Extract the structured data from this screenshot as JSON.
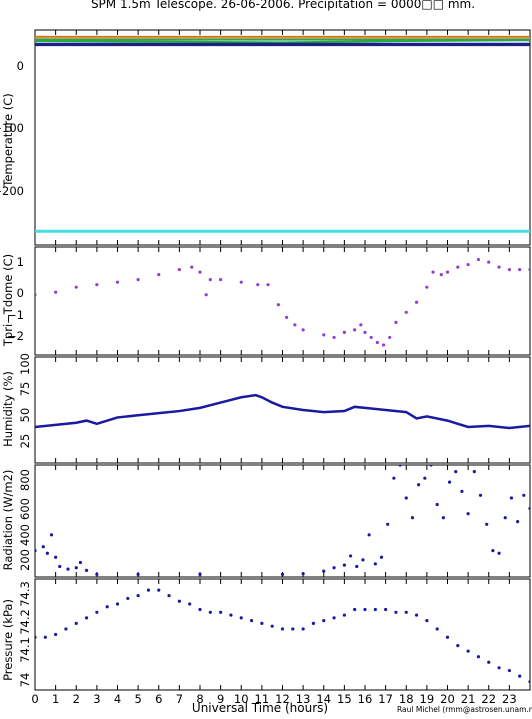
{
  "title": "SPM 1.5m Telescope. 26-06-2006. Precipitation = 0000□□ mm.",
  "xlabel": "Universal Time (hours)",
  "credit": "Raul Michel (rmm@astrosen.unam.mx)",
  "x_ticks": [
    "0",
    "1",
    "2",
    "3",
    "4",
    "5",
    "6",
    "7",
    "8",
    "9",
    "10",
    "11",
    "12",
    "13",
    "14",
    "15",
    "16",
    "17",
    "18",
    "19",
    "20",
    "21",
    "22",
    "23"
  ],
  "panels": [
    {
      "ylabel": "Temperature (C)",
      "ticks": [
        "0",
        "−100",
        "−200"
      ]
    },
    {
      "ylabel": "Tpri−Tdome (C)",
      "ticks": [
        "1",
        "0",
        "−1",
        "−2"
      ]
    },
    {
      "ylabel": "Humidity (%)",
      "ticks": [
        "25",
        "50",
        "75",
        "100"
      ]
    },
    {
      "ylabel": "Radiation (W/m2)",
      "ticks": [
        "200",
        "400",
        "600",
        "800"
      ]
    },
    {
      "ylabel": "Pressure (kPa)",
      "ticks": [
        "74",
        "74.1",
        "74.2",
        "74.3"
      ]
    }
  ],
  "chart_data": [
    {
      "type": "line",
      "ylabel": "Temperature (C)",
      "xlim": [
        0,
        24
      ],
      "ylim": [
        -285,
        28
      ],
      "series": [
        {
          "color": "#e03020",
          "x": [
            0,
            24
          ],
          "y": [
            18,
            18
          ]
        },
        {
          "color": "#d4a020",
          "x": [
            0,
            24
          ],
          "y": [
            17,
            17
          ]
        },
        {
          "color": "#20b020",
          "x": [
            0,
            6,
            12,
            18,
            24
          ],
          "y": [
            12,
            11,
            10,
            12,
            13
          ]
        },
        {
          "color": "#30a070",
          "x": [
            0,
            24
          ],
          "y": [
            14,
            14
          ]
        },
        {
          "color": "#1a1aa0",
          "x": [
            0,
            24
          ],
          "y": [
            8,
            8
          ]
        },
        {
          "color": "#202080",
          "x": [
            0,
            24
          ],
          "y": [
            6,
            6
          ]
        },
        {
          "color": "#40e0e0",
          "x": [
            0,
            24
          ],
          "y": [
            -265,
            -265
          ]
        }
      ]
    },
    {
      "type": "scatter",
      "ylabel": "Tpri−Tdome (C)",
      "xlim": [
        0,
        24
      ],
      "ylim": [
        -2.7,
        1.6
      ],
      "color": "#9040d0",
      "x": [
        0,
        1,
        2,
        3,
        4,
        5,
        6,
        7,
        7.6,
        8,
        8.3,
        8.5,
        9,
        10,
        10.8,
        11.3,
        11.8,
        12.2,
        12.6,
        13,
        14,
        14.5,
        15,
        15.5,
        15.8,
        16,
        16.3,
        16.6,
        16.9,
        17.2,
        17.5,
        18,
        18.5,
        19,
        19.3,
        19.7,
        20,
        20.5,
        21,
        21.5,
        22,
        22.5,
        23,
        23.5,
        24
      ],
      "y": [
        -0.3,
        -0.2,
        0,
        0.1,
        0.2,
        0.3,
        0.5,
        0.7,
        0.8,
        0.6,
        -0.3,
        0.3,
        0.3,
        0.2,
        0.1,
        0.1,
        -0.7,
        -1.2,
        -1.5,
        -1.7,
        -1.9,
        -2.0,
        -1.8,
        -1.7,
        -1.5,
        -1.8,
        -2.0,
        -2.2,
        -2.3,
        -2.0,
        -1.4,
        -1.0,
        -0.6,
        0,
        0.6,
        0.5,
        0.6,
        0.8,
        0.9,
        1.1,
        1.0,
        0.8,
        0.7,
        0.7,
        0.7
      ]
    },
    {
      "type": "line",
      "ylabel": "Humidity (%)",
      "xlim": [
        0,
        24
      ],
      "ylim": [
        0,
        100
      ],
      "color": "#1a1aa0",
      "x": [
        0,
        1,
        2,
        2.5,
        3,
        4,
        5,
        6,
        7,
        8,
        9,
        10,
        10.7,
        11,
        11.5,
        12,
        13,
        14,
        15,
        15.5,
        16,
        17,
        18,
        18.5,
        19,
        20,
        20.5,
        21,
        22,
        23,
        24
      ],
      "y": [
        34,
        36,
        38,
        40,
        37,
        43,
        45,
        47,
        49,
        52,
        57,
        62,
        64,
        62,
        57,
        53,
        50,
        48,
        49,
        53,
        52,
        50,
        48,
        42,
        44,
        40,
        37,
        34,
        35,
        33,
        35
      ]
    },
    {
      "type": "scatter",
      "ylabel": "Radiation (W/m2)",
      "xlim": [
        0,
        24
      ],
      "ylim": [
        0,
        850
      ],
      "color": "#1a1aa0",
      "x": [
        0,
        0.4,
        0.6,
        0.8,
        1.0,
        1.2,
        1.6,
        2.0,
        2.2,
        2.5,
        3,
        5,
        8,
        12,
        13,
        14,
        14.5,
        15,
        15.3,
        15.6,
        15.9,
        16.2,
        16.5,
        16.8,
        17.1,
        17.4,
        17.7,
        18,
        18.3,
        18.6,
        18.9,
        19.2,
        19.5,
        19.8,
        20.1,
        20.4,
        20.7,
        21,
        21.3,
        21.6,
        21.9,
        22.2,
        22.5,
        22.8,
        23.1,
        23.4,
        23.7,
        24
      ],
      "y": [
        200,
        230,
        180,
        320,
        150,
        80,
        60,
        70,
        110,
        50,
        20,
        20,
        20,
        20,
        25,
        45,
        70,
        90,
        160,
        80,
        130,
        320,
        100,
        150,
        400,
        750,
        850,
        600,
        450,
        700,
        750,
        850,
        550,
        450,
        720,
        800,
        650,
        480,
        800,
        620,
        400,
        200,
        180,
        450,
        600,
        420,
        620,
        520
      ]
    },
    {
      "type": "scatter",
      "ylabel": "Pressure (kPa)",
      "xlim": [
        0,
        24
      ],
      "ylim": [
        73.92,
        74.32
      ],
      "color": "#1a1aa0",
      "x": [
        0,
        0.5,
        1,
        1.5,
        2,
        2.5,
        3,
        3.5,
        4,
        4.5,
        5,
        5.5,
        6,
        6.5,
        7,
        7.5,
        8,
        8.5,
        9,
        9.5,
        10,
        10.5,
        11,
        11.5,
        12,
        12.5,
        13,
        13.5,
        14,
        14.5,
        15,
        15.5,
        16,
        16.5,
        17,
        17.5,
        18,
        18.5,
        19,
        19.5,
        20,
        20.5,
        21,
        21.5,
        22,
        22.5,
        23,
        23.5,
        24
      ],
      "y": [
        74.11,
        74.11,
        74.12,
        74.14,
        74.16,
        74.18,
        74.2,
        74.22,
        74.23,
        74.25,
        74.26,
        74.28,
        74.28,
        74.26,
        74.24,
        74.23,
        74.21,
        74.2,
        74.2,
        74.19,
        74.18,
        74.17,
        74.16,
        74.15,
        74.14,
        74.14,
        74.14,
        74.16,
        74.17,
        74.18,
        74.19,
        74.21,
        74.21,
        74.21,
        74.21,
        74.2,
        74.2,
        74.19,
        74.17,
        74.14,
        74.11,
        74.08,
        74.06,
        74.04,
        74.02,
        74.0,
        73.99,
        73.97,
        73.95
      ]
    }
  ]
}
